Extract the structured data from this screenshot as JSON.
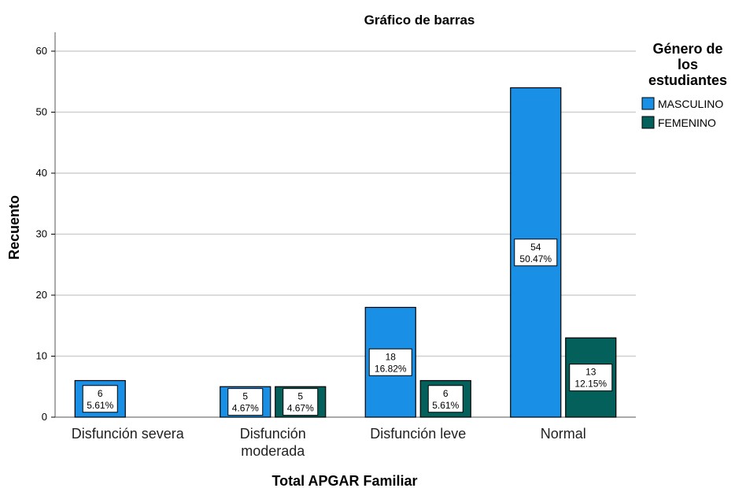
{
  "chart_data": {
    "type": "bar",
    "title": "Gráfico de barras",
    "xlabel": "Total APGAR Familiar",
    "ylabel": "Recuento",
    "ylim": [
      0,
      60
    ],
    "yticks": [
      0,
      10,
      20,
      30,
      40,
      50,
      60
    ],
    "grid": true,
    "categories": [
      [
        "Disfunción severa"
      ],
      [
        "Disfunción",
        "moderada"
      ],
      [
        "Disfunción leve"
      ],
      [
        "Normal"
      ]
    ],
    "legend": {
      "title": [
        "Género de",
        "los",
        "estudiantes"
      ],
      "placement": "right"
    },
    "series": [
      {
        "name": "MASCULINO",
        "color": "#1a8fe6",
        "values": [
          6,
          5,
          18,
          54
        ],
        "percents": [
          "5.61%",
          "4.67%",
          "16.82%",
          "50.47%"
        ]
      },
      {
        "name": "FEMENINO",
        "color": "#04605a",
        "values": [
          0,
          5,
          6,
          13
        ],
        "percents": [
          "",
          "4.67%",
          "5.61%",
          "12.15%"
        ]
      }
    ]
  }
}
